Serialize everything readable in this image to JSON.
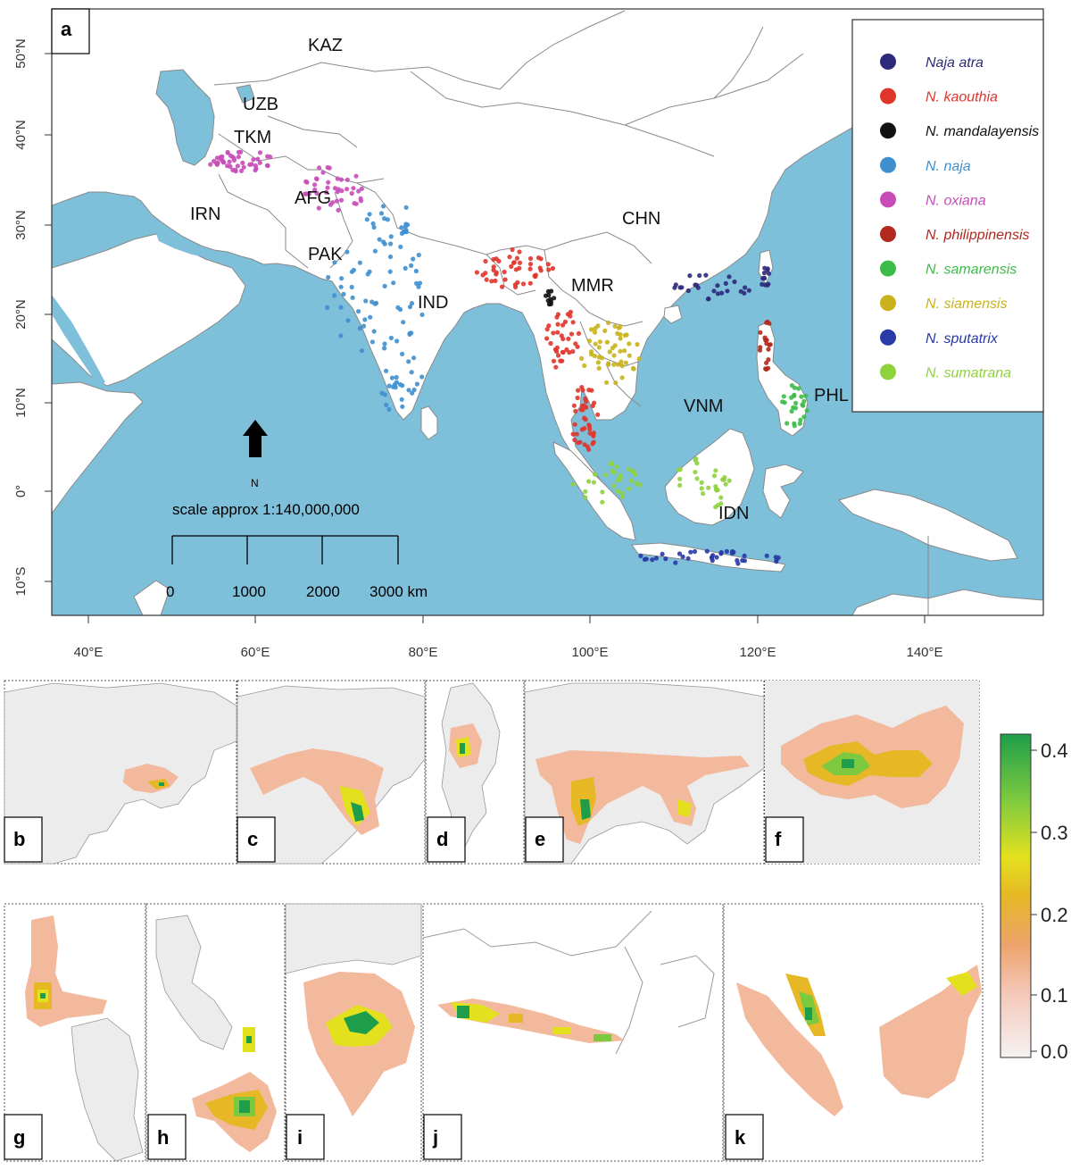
{
  "main_map": {
    "panel_label": "a",
    "lat_labels": [
      "50°N",
      "40°N",
      "30°N",
      "20°N",
      "10°N",
      "0°",
      "10°S"
    ],
    "lon_labels": [
      "40°E",
      "60°E",
      "80°E",
      "100°E",
      "120°E",
      "140°E"
    ],
    "countries": [
      "KAZ",
      "UZB",
      "TKM",
      "AFG",
      "IRN",
      "PAK",
      "IND",
      "CHN",
      "MMR",
      "VNM",
      "PHL",
      "IDN"
    ],
    "north_label": "N",
    "scale_text": "scale approx 1:140,000,000",
    "scale_ticks": [
      "0",
      "1000",
      "2000",
      "3000 km"
    ],
    "legend": [
      {
        "name": "Naja atra",
        "color": "#2e2a7a"
      },
      {
        "name": "N. kaouthia",
        "color": "#e0352b"
      },
      {
        "name": "N. mandalayensis",
        "color": "#111111"
      },
      {
        "name": "N. naja",
        "color": "#3f8fcf"
      },
      {
        "name": "N. oxiana",
        "color": "#c84cb8"
      },
      {
        "name": "N. philippinensis",
        "color": "#b2291d"
      },
      {
        "name": "N. samarensis",
        "color": "#3dbb4a"
      },
      {
        "name": "N. siamensis",
        "color": "#c9b21b"
      },
      {
        "name": "N. sputatrix",
        "color": "#2a3aa6"
      },
      {
        "name": "N. sumatrana",
        "color": "#8fd23e"
      }
    ]
  },
  "sub_panels": [
    "b",
    "c",
    "d",
    "e",
    "f",
    "g",
    "h",
    "i",
    "j",
    "k"
  ],
  "colorbar": {
    "ticks": [
      "0.4",
      "0.3",
      "0.2",
      "0.1",
      "0.0"
    ],
    "colors": [
      "#f5f2f2",
      "#f4c7b8",
      "#eda36a",
      "#e6b825",
      "#e3e11e",
      "#7cc940",
      "#1e9e4a"
    ]
  },
  "colors": {
    "ocean": "#7ebfda",
    "land": "#ffffff",
    "border": "#8a8a8a",
    "absence": "#ececec"
  }
}
